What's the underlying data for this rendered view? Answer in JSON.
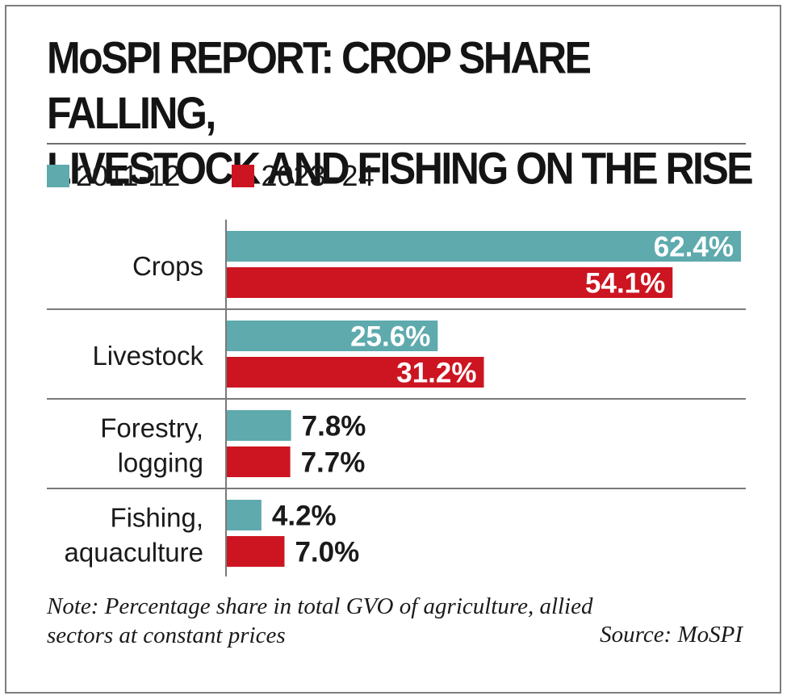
{
  "header": {
    "title_line1": "MoSPI REPORT: CROP SHARE FALLING,",
    "title_line2": "LIVESTOCK AND FISHING ON THE RISE"
  },
  "footer": {
    "note_line1": "Note: Percentage share in total GVO of agriculture, allied",
    "note_line2": "sectors at constant prices",
    "source": "Source: MoSPI"
  },
  "colors": {
    "teal": "#5eaaad",
    "red": "#cc1521",
    "text": "#1a1a1a",
    "value_on_bar": "#ffffff",
    "rule": "#7a7a7a"
  },
  "chart_data": {
    "type": "bar",
    "orientation": "horizontal",
    "categories": [
      [
        "Crops"
      ],
      [
        "Livestock"
      ],
      [
        "Forestry,",
        "logging"
      ],
      [
        "Fishing,",
        "aquaculture"
      ]
    ],
    "series": [
      {
        "name": "2011-12",
        "color": "#5eaaad",
        "values": [
          62.4,
          25.6,
          7.8,
          4.2
        ],
        "labels": [
          "62.4%",
          "25.6%",
          "7.8%",
          "4.2%"
        ]
      },
      {
        "name": "2023–24",
        "color": "#cc1521",
        "values": [
          54.1,
          31.2,
          7.7,
          7.0
        ],
        "labels": [
          "54.1%",
          "31.2%",
          "7.7%",
          "7.0%"
        ]
      }
    ],
    "xlim": [
      0,
      62.4
    ],
    "grid": false,
    "legend_position": "top-left"
  }
}
